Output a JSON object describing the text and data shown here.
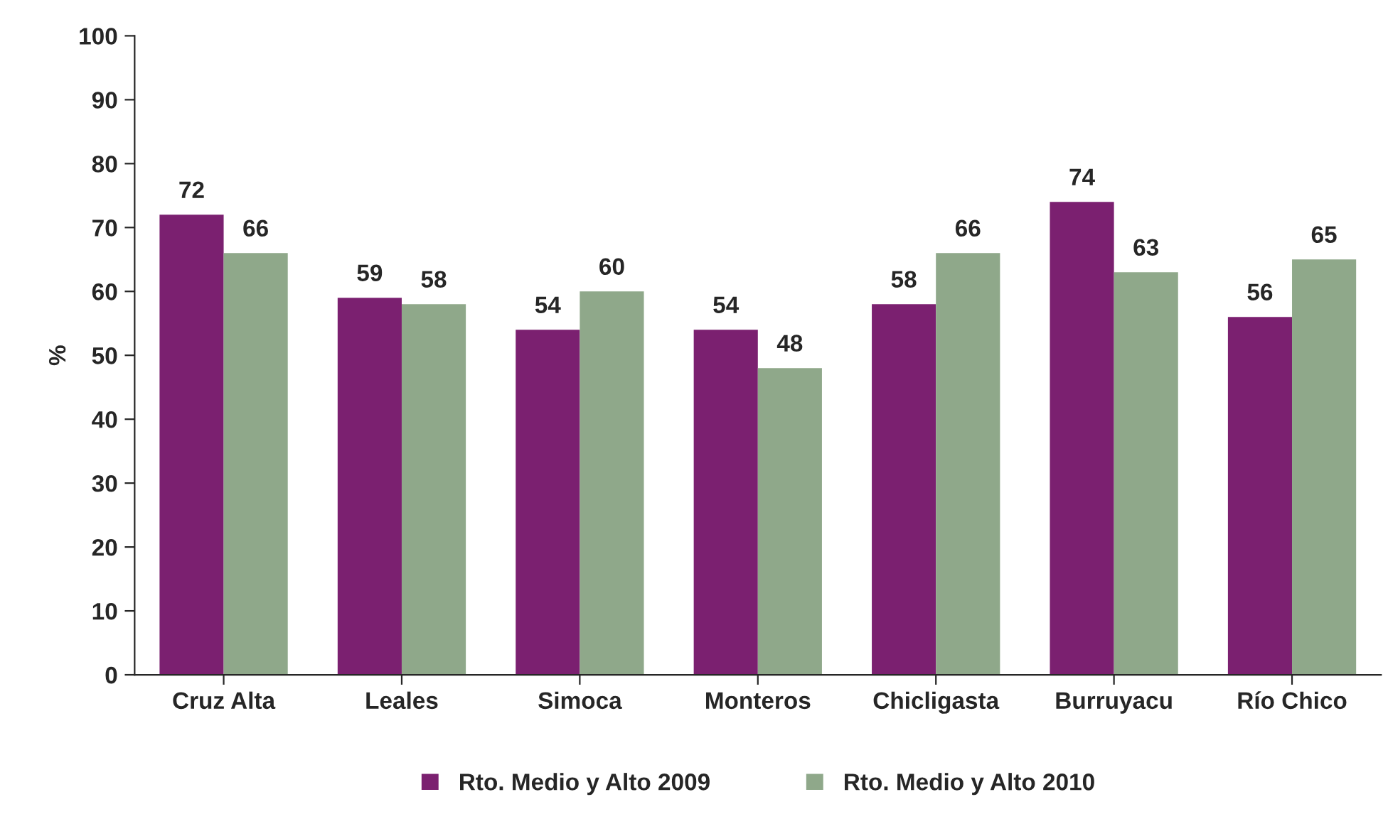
{
  "chart_data": {
    "type": "bar",
    "ylabel": "%",
    "categories": [
      "Cruz Alta",
      "Leales",
      "Simoca",
      "Monteros",
      "Chicligasta",
      "Burruyacu",
      "Río Chico"
    ],
    "series": [
      {
        "name": "Rto. Medio y Alto 2009",
        "color": "#7b2070",
        "values": [
          72,
          59,
          54,
          54,
          58,
          74,
          56
        ]
      },
      {
        "name": "Rto. Medio y Alto 2010",
        "color": "#8fa88a",
        "values": [
          66,
          58,
          60,
          48,
          66,
          63,
          65
        ]
      }
    ],
    "ylim": [
      0,
      100
    ],
    "yticks": [
      0,
      10,
      20,
      30,
      40,
      50,
      60,
      70,
      80,
      90,
      100
    ],
    "data_labels": true,
    "grid": false,
    "legend": "bottom"
  }
}
